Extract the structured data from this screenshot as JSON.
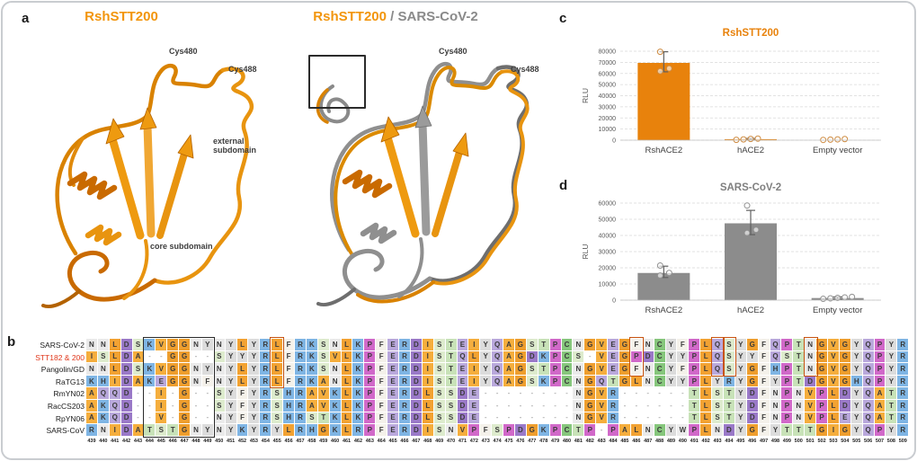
{
  "panels": {
    "a": "a",
    "b": "b",
    "c": "c",
    "d": "d"
  },
  "panel_a": {
    "left_title": "RshSTT200",
    "right_title": {
      "orange": "RshSTT200",
      "sep": " / ",
      "gray": "SARS-CoV-2"
    },
    "labels": {
      "cys480": "Cys480",
      "cys488": "Cys488",
      "external_subdomain": "external subdomain",
      "core_subdomain": "core subdomain"
    },
    "colors": {
      "ribbon_orange": "#E8940F",
      "ribbon_gray": "#8F8F8F"
    }
  },
  "chart_data": [
    {
      "id": "c",
      "type": "bar",
      "title": "RshSTT200",
      "title_color": "#E8820C",
      "ylabel": "RLU",
      "ylim": [
        0,
        80000
      ],
      "ytick_step": 10000,
      "grid": true,
      "categories": [
        "RshACE2",
        "hACE2",
        "Empty vector"
      ],
      "values": [
        69500,
        900,
        0
      ],
      "errors": [
        [
          61500,
          79500
        ],
        [
          200,
          1600
        ],
        null
      ],
      "points": [
        [
          62000,
          64500,
          79500
        ],
        [
          300,
          700,
          1100,
          1400
        ],
        [
          250,
          500,
          750,
          1000
        ]
      ],
      "bar_color": "#E8820C",
      "point_color": "#CE8A3F",
      "error_color": "#5f5f5f"
    },
    {
      "id": "d",
      "type": "bar",
      "title": "SARS-CoV-2",
      "title_color": "#7F7F7F",
      "ylabel": "RLU",
      "ylim": [
        0,
        60000
      ],
      "ytick_step": 10000,
      "grid": true,
      "categories": [
        "RshACE2",
        "hACE2",
        "Empty vector"
      ],
      "values": [
        16800,
        47500,
        1300
      ],
      "errors": [
        [
          14000,
          21000
        ],
        [
          40500,
          55500
        ],
        [
          700,
          2000
        ]
      ],
      "points": [
        [
          15200,
          16800,
          21400
        ],
        [
          41500,
          43500,
          58500
        ],
        [
          800,
          1100,
          1400,
          1700,
          2000
        ]
      ],
      "bar_color": "#8C8C8C",
      "point_color": "#909090",
      "error_color": "#5f5f5f"
    }
  ],
  "alignment": {
    "start": 439,
    "end": 509,
    "rows": [
      {
        "name": "SARS-CoV-2",
        "label_color": "#1a1a1a",
        "seq": "NNLDSKVGGNYNYLYRLFRKSNLKPFERDISTEIYQAGSTPCNGVEGFNCYFPLQSYGFQPTNGVGYQPYR"
      },
      {
        "name": "STT182 & 200",
        "label_color": "#E0361A",
        "seq": "ISLDA--GG--SYYYRLFRKSVLKPFERDISTQLYQAGDKPCS-VEGPDCYYPLQSYYFQSTNGVGYQPYR"
      },
      {
        "name": "Pangolin/GD",
        "label_color": "#1a1a1a",
        "seq": "NNLDSKVGGNYNYLYRLFRKSNLKPFERDISTEIYQAGSTPCNGVEGFNCYFPLQSYGFHPTNGVGYQPYR"
      },
      {
        "name": "RaTG13",
        "label_color": "#1a1a1a",
        "seq": "KHIDAKEGGNFNYLYRLFRKANLKPFERDISTEIYQAGSKPCNGQTGLNCYYPLYRYGFYPTDGVGHQPYR"
      },
      {
        "name": "RmYN02",
        "label_color": "#1a1a1a",
        "seq": "AQQD--I-G--SYFYRSHRAVKLKPFERDLSSDE--------NGVR------TLSTYDFNPNVPLDYQATR"
      },
      {
        "name": "RacCS203",
        "label_color": "#1a1a1a",
        "seq": "AKQD--I-G--SYFYRSHRAVKLKPFERDLSSDE--------NGVR------TLSTYDFNPNVPLDYQATR"
      },
      {
        "name": "RpYN06",
        "label_color": "#1a1a1a",
        "seq": "AKQD--V-G--NYFYRSHRSTKLKPFERDLSSDE--------NGVR------TLSTYDFNPNVPLEYQATR"
      },
      {
        "name": "SARS-CoV",
        "label_color": "#1a1a1a",
        "seq": "RNIDATSTGNYNYKYRYLRHGKLRPFERDISNVPFSPDGKPCTP-PALNCYWPLNDYGFYTTTGIGYQPYR"
      }
    ],
    "black_box": {
      "start": 444,
      "end": 449,
      "rows": 8,
      "color": "#2b2b2b"
    },
    "orange_boxes": [
      {
        "pos": 455,
        "rows": 4
      },
      {
        "pos": 486,
        "rows": 3
      },
      {
        "pos": 493,
        "rows": 3
      },
      {
        "pos": 494,
        "rows": 3
      },
      {
        "pos": 501,
        "rows": 3
      }
    ],
    "orange_box_color": "#C75310",
    "residue_colors": {
      "A": "#F5AE3D",
      "V": "#F5AE3D",
      "L": "#F2A232",
      "I": "#F5AE3D",
      "M": "#F5AE3D",
      "G": "#EE9E2E",
      "F": "#F4F1EA",
      "W": "#ECECEC",
      "Y": "#DCDCDC",
      "N": "#EAEAEA",
      "Q": "#B9A8DC",
      "E": "#B9A8DC",
      "D": "#9A79C8",
      "S": "#DDEBCD",
      "T": "#C8E2B8",
      "C": "#86C67C",
      "K": "#7FB5E4",
      "R": "#7FB5E4",
      "H": "#7FB5E4",
      "P": "#D169C9",
      "-": "#FFFFFF"
    }
  }
}
